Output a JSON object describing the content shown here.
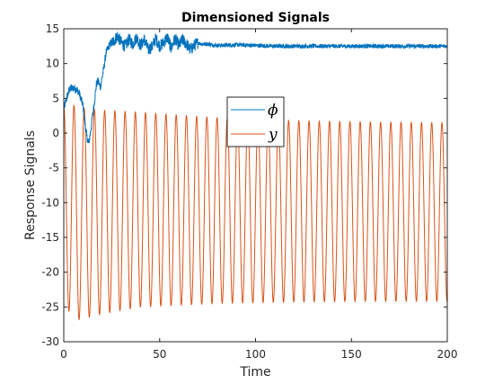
{
  "chart_data": {
    "type": "line",
    "title": "Dimensioned Signals",
    "xlabel": "Time",
    "ylabel": "Response Signals",
    "xlim": [
      0,
      200
    ],
    "ylim": [
      -30,
      15
    ],
    "xticks": [
      0,
      50,
      100,
      150,
      200
    ],
    "xtick_labels": [
      "0",
      "50",
      "100",
      "150",
      "200"
    ],
    "yticks": [
      -30,
      -25,
      -20,
      -15,
      -10,
      -5,
      0,
      5,
      10,
      15
    ],
    "ytick_labels": [
      "-30",
      "-25",
      "-20",
      "-15",
      "-10",
      "-5",
      "0",
      "5",
      "10",
      "15"
    ],
    "grid": false,
    "legend_position": "center",
    "series": [
      {
        "name": "ϕ",
        "color": "#0072bd",
        "description": "noisy signal settling near 12.5",
        "x": [
          0,
          2,
          3,
          5,
          7,
          8,
          10,
          11,
          12,
          13,
          14,
          15,
          16,
          17,
          18,
          19,
          20,
          21,
          22,
          24,
          26,
          28,
          30,
          32,
          34,
          36,
          38,
          40,
          42,
          44,
          46,
          48,
          50,
          52,
          54,
          56,
          58,
          60,
          62,
          64,
          66,
          68,
          70,
          72,
          75,
          80,
          90,
          100,
          110,
          120,
          130,
          140,
          150,
          160,
          170,
          180,
          190,
          200
        ],
        "y": [
          3.5,
          5.5,
          6.3,
          6.5,
          6.2,
          5.8,
          4.0,
          1.5,
          -0.5,
          -1.5,
          0.2,
          2.5,
          4.5,
          7.0,
          7.5,
          6.5,
          8.0,
          9.5,
          11.5,
          12.8,
          13.2,
          14.0,
          13.0,
          12.5,
          13.5,
          12.8,
          13.8,
          12.6,
          13.5,
          12.0,
          12.4,
          13.6,
          12.5,
          13.0,
          13.8,
          12.2,
          13.6,
          12.6,
          13.4,
          12.8,
          12.0,
          12.6,
          13.0,
          12.8,
          12.8,
          12.6,
          12.7,
          12.6,
          12.5,
          12.5,
          12.5,
          12.5,
          12.5,
          12.5,
          12.5,
          12.5,
          12.5,
          12.5
        ]
      },
      {
        "name": "y",
        "color": "#d95319",
        "description": "sinusoidal oscillation between about 3 and -24",
        "x_start": 0,
        "x_end": 200,
        "period": 5.33,
        "upper_envelope": [
          [
            0,
            4.2
          ],
          [
            5,
            4.0
          ],
          [
            10,
            3.6
          ],
          [
            20,
            3.3
          ],
          [
            40,
            3.0
          ],
          [
            80,
            2.2
          ],
          [
            120,
            1.8
          ],
          [
            160,
            1.6
          ],
          [
            200,
            1.5
          ]
        ],
        "lower_envelope": [
          [
            0,
            -24.0
          ],
          [
            5,
            -27.0
          ],
          [
            10,
            -26.7
          ],
          [
            20,
            -26.0
          ],
          [
            40,
            -25.0
          ],
          [
            80,
            -24.5
          ],
          [
            120,
            -24.3
          ],
          [
            160,
            -24.2
          ],
          [
            200,
            -24.2
          ]
        ]
      }
    ]
  }
}
